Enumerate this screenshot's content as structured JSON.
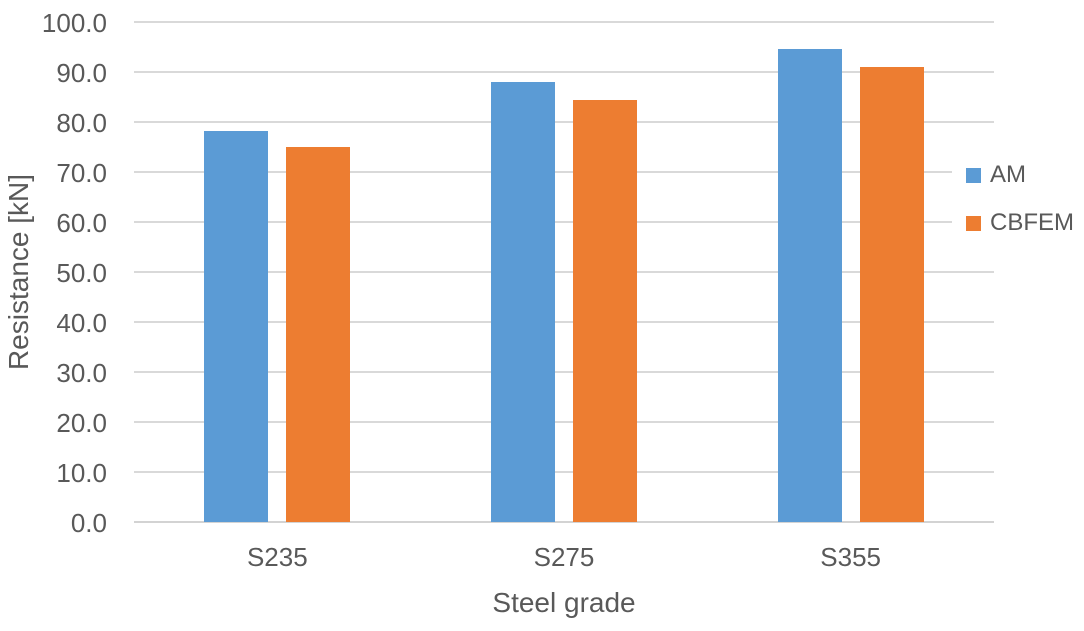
{
  "chart_data": {
    "type": "bar",
    "title": "",
    "xlabel": "Steel grade",
    "ylabel": "Resistance [kN]",
    "categories": [
      "S235",
      "S275",
      "S355"
    ],
    "series": [
      {
        "name": "AM",
        "color": "#5B9BD5",
        "values": [
          78.2,
          88.0,
          94.6
        ]
      },
      {
        "name": "CBFEM",
        "color": "#ED7D31",
        "values": [
          75.0,
          84.4,
          91.0
        ]
      }
    ],
    "ylim": [
      0,
      100
    ],
    "ytick_step": 10,
    "ytick_decimals": 1,
    "grid": true,
    "legend_position": "right"
  },
  "colors": {
    "text": "#595959",
    "gridline": "#D9D9D9",
    "axis_line": "#D3D3D3",
    "background": "#FFFFFF"
  }
}
